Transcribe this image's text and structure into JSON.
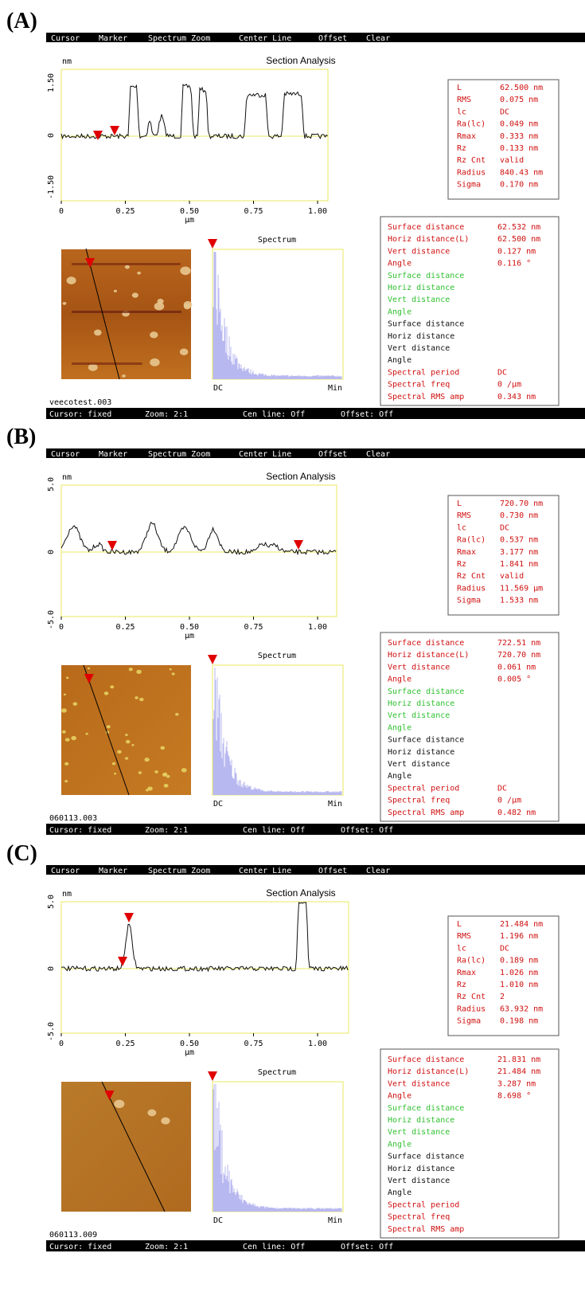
{
  "panels": [
    {
      "label": "(A)",
      "menu": [
        "Cursor",
        "Marker",
        "Spectrum Zoom",
        "Center Line",
        "Offset",
        "Clear"
      ],
      "title": "Section Analysis",
      "y_unit": "nm",
      "y_ticks": [
        "1.50",
        "0",
        "-1.50"
      ],
      "x_ticks": [
        "0",
        "0.25",
        "0.50",
        "0.75",
        "1.00"
      ],
      "x_unit": "µm",
      "stats": [
        [
          "L",
          "62.500 nm"
        ],
        [
          "RMS",
          "0.075 nm"
        ],
        [
          "lc",
          "DC"
        ],
        [
          "Ra(lc)",
          "0.049 nm"
        ],
        [
          "Rmax",
          "0.333 nm"
        ],
        [
          "Rz",
          "0.133 nm"
        ],
        [
          "Rz Cnt",
          "valid"
        ],
        [
          "Radius",
          "840.43 nm"
        ],
        [
          "Sigma",
          "0.170 nm"
        ]
      ],
      "spectrum_title": "Spectrum",
      "spectrum_axis": [
        "DC",
        "Min"
      ],
      "measurements": [
        [
          "Surface distance",
          "62.532 nm"
        ],
        [
          "Horiz distance(L)",
          "62.500 nm"
        ],
        [
          "Vert distance",
          "0.127 nm"
        ],
        [
          "Angle",
          "0.116 °"
        ],
        [
          "Surface distance"
        ],
        [
          "Horiz distance"
        ],
        [
          "Vert distance"
        ],
        [
          "Angle"
        ],
        [
          "Surface distance"
        ],
        [
          "Horiz distance"
        ],
        [
          "Vert distance"
        ],
        [
          "Angle"
        ],
        [
          "Spectral period",
          "DC"
        ],
        [
          "Spectral freq",
          "0 /µm"
        ],
        [
          "Spectral RMS amp",
          "0.343 nm"
        ]
      ],
      "file": "veecotest.003",
      "status": [
        "Cursor: fixed",
        "Zoom: 2:1",
        "Cen line: Off",
        "Offset: Off"
      ]
    },
    {
      "label": "(B)",
      "menu": [
        "Cursor",
        "Marker",
        "Spectrum Zoom",
        "Center Line",
        "Offset",
        "Clear"
      ],
      "title": "Section Analysis",
      "y_unit": "nm",
      "y_ticks": [
        "5.0",
        "0",
        "-5.0"
      ],
      "x_ticks": [
        "0",
        "0.25",
        "0.50",
        "0.75",
        "1.00"
      ],
      "x_unit": "µm",
      "stats": [
        [
          "L",
          "720.70 nm"
        ],
        [
          "RMS",
          "0.730 nm"
        ],
        [
          "lc",
          "DC"
        ],
        [
          "Ra(lc)",
          "0.537 nm"
        ],
        [
          "Rmax",
          "3.177 nm"
        ],
        [
          "Rz",
          "1.841 nm"
        ],
        [
          "Rz Cnt",
          "valid"
        ],
        [
          "Radius",
          "11.569 µm"
        ],
        [
          "Sigma",
          "1.533 nm"
        ]
      ],
      "spectrum_title": "Spectrum",
      "spectrum_axis": [
        "DC",
        "Min"
      ],
      "measurements": [
        [
          "Surface distance",
          "722.51 nm"
        ],
        [
          "Horiz distance(L)",
          "720.70 nm"
        ],
        [
          "Vert distance",
          "0.061 nm"
        ],
        [
          "Angle",
          "0.005 °"
        ],
        [
          "Surface distance"
        ],
        [
          "Horiz distance"
        ],
        [
          "Vert distance"
        ],
        [
          "Angle"
        ],
        [
          "Surface distance"
        ],
        [
          "Horiz distance"
        ],
        [
          "Vert distance"
        ],
        [
          "Angle"
        ],
        [
          "Spectral period",
          "DC"
        ],
        [
          "Spectral freq",
          "0 /µm"
        ],
        [
          "Spectral RMS amp",
          "0.482 nm"
        ]
      ],
      "file": "060113.003",
      "status": [
        "Cursor: fixed",
        "Zoom: 2:1",
        "Cen line: Off",
        "Offset: Off"
      ]
    },
    {
      "label": "(C)",
      "menu": [
        "Cursor",
        "Marker",
        "Spectrum Zoom",
        "Center Line",
        "Offset",
        "Clear"
      ],
      "title": "Section Analysis",
      "y_unit": "nm",
      "y_ticks": [
        "5.0",
        "0",
        "-5.0"
      ],
      "x_ticks": [
        "0",
        "0.25",
        "0.50",
        "0.75",
        "1.00"
      ],
      "x_unit": "µm",
      "stats": [
        [
          "L",
          "21.484 nm"
        ],
        [
          "RMS",
          "1.196 nm"
        ],
        [
          "lc",
          "DC"
        ],
        [
          "Ra(lc)",
          "0.189 nm"
        ],
        [
          "Rmax",
          "1.026 nm"
        ],
        [
          "Rz",
          "1.010 nm"
        ],
        [
          "Rz Cnt",
          "2"
        ],
        [
          "Radius",
          "63.932 nm"
        ],
        [
          "Sigma",
          "0.198 nm"
        ]
      ],
      "spectrum_title": "Spectrum",
      "spectrum_axis": [
        "DC",
        "Min"
      ],
      "measurements": [
        [
          "Surface distance",
          "21.831 nm"
        ],
        [
          "Horiz distance(L)",
          "21.484 nm"
        ],
        [
          "Vert distance",
          "3.287 nm"
        ],
        [
          "Angle",
          "8.698 °"
        ],
        [
          "Surface distance"
        ],
        [
          "Horiz distance"
        ],
        [
          "Vert distance"
        ],
        [
          "Angle"
        ],
        [
          "Surface distance"
        ],
        [
          "Horiz distance"
        ],
        [
          "Vert distance"
        ],
        [
          "Angle"
        ],
        [
          "Spectral period"
        ],
        [
          "Spectral freq"
        ],
        [
          "Spectral RMS amp"
        ]
      ],
      "file": "060113.009",
      "status": [
        "Cursor: fixed",
        "Zoom: 2:1",
        "Cen line: Off",
        "Offset: Off"
      ]
    }
  ]
}
